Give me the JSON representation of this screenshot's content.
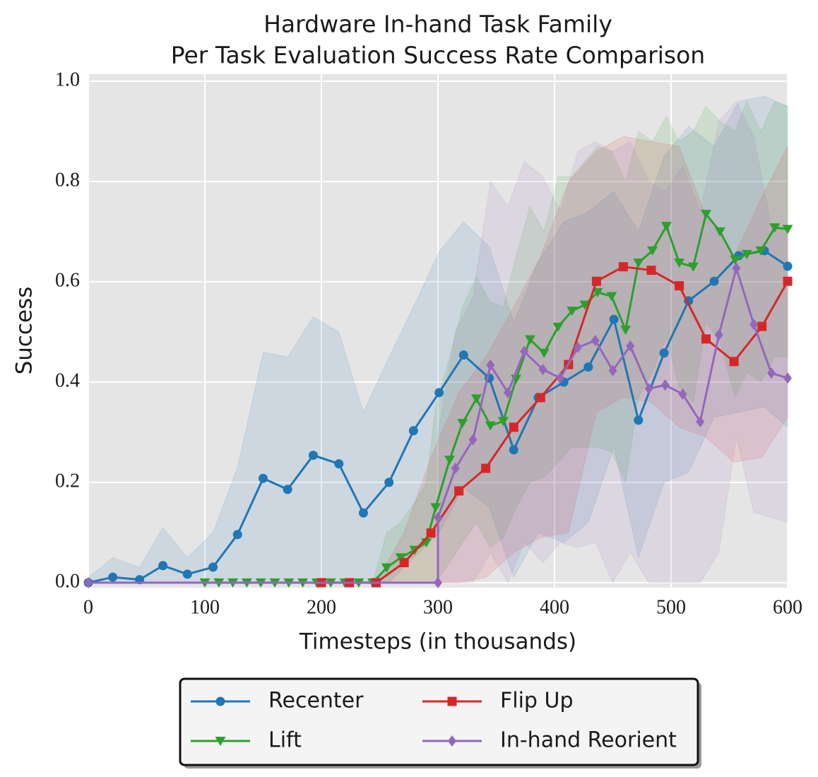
{
  "chart_data": {
    "type": "line",
    "title": [
      "Hardware In-hand Task Family",
      "Per Task Evaluation Success Rate Comparison"
    ],
    "x_label": "Timesteps (in thousands)",
    "y_label": "Success",
    "xlim": [
      0,
      600
    ],
    "ylim": [
      -0.01,
      1.014
    ],
    "xticks": [
      0,
      100,
      200,
      300,
      400,
      500,
      600
    ],
    "yticks": [
      {
        "value": 0,
        "label": "0.0"
      },
      0.2,
      0.4,
      0.6,
      0.8,
      {
        "value": 1,
        "label": "1.0"
      }
    ],
    "grid": true,
    "legend": "below",
    "band_opacity": 0.12,
    "series": [
      {
        "name": "Recenter",
        "color": "#1f77b4",
        "marker": "circle",
        "x": [
          0,
          21,
          44,
          64,
          85,
          107,
          128,
          150,
          171,
          193,
          215,
          236,
          258,
          279,
          301,
          322,
          344,
          365,
          386,
          408,
          429,
          451,
          472,
          494,
          515,
          537,
          558,
          580,
          600
        ],
        "values": [
          0,
          0.011,
          0.006,
          0.034,
          0.017,
          0.031,
          0.096,
          0.208,
          0.186,
          0.254,
          0.237,
          0.139,
          0.2,
          0.303,
          0.379,
          0.454,
          0.408,
          0.265,
          0.369,
          0.4,
          0.43,
          0.525,
          0.324,
          0.458,
          0.562,
          0.601,
          0.652,
          0.662,
          0.631
        ],
        "upper": [
          0.01,
          0.05,
          0.03,
          0.11,
          0.05,
          0.1,
          0.23,
          0.46,
          0.45,
          0.53,
          0.5,
          0.34,
          0.45,
          0.55,
          0.66,
          0.72,
          0.67,
          0.52,
          0.64,
          0.72,
          0.74,
          0.78,
          0.7,
          0.85,
          0.91,
          0.87,
          0.96,
          0.97,
          0.95
        ],
        "lower": [
          0,
          0,
          0,
          0,
          0,
          0,
          0,
          0,
          0,
          0,
          0,
          0,
          0,
          0.05,
          0.1,
          0.19,
          0.15,
          0.01,
          0.1,
          0.08,
          0.12,
          0.27,
          0.05,
          0.2,
          0.22,
          0.33,
          0.34,
          0.35,
          0.31
        ]
      },
      {
        "name": "Lift",
        "color": "#2ca02c",
        "marker": "triangle-down",
        "x": [
          100,
          112,
          124,
          136,
          148,
          160,
          172,
          184,
          196,
          208,
          220,
          232,
          244,
          256,
          268,
          280,
          290,
          298,
          310,
          321,
          333,
          345,
          356,
          367,
          379,
          391,
          403,
          415,
          426,
          437,
          449,
          461,
          472,
          484,
          496,
          507,
          519,
          530,
          542,
          555,
          565,
          577,
          589,
          600
        ],
        "values": [
          0,
          0,
          0,
          0,
          0,
          0,
          0,
          0,
          0,
          0,
          0,
          0,
          0,
          0.03,
          0.05,
          0.065,
          0.08,
          0.15,
          0.245,
          0.318,
          0.367,
          0.313,
          0.322,
          0.406,
          0.485,
          0.458,
          0.51,
          0.542,
          0.554,
          0.579,
          0.571,
          0.504,
          0.638,
          0.662,
          0.711,
          0.638,
          0.63,
          0.735,
          0.7,
          0.644,
          0.655,
          0.662,
          0.708,
          0.705
        ],
        "upper": [
          0,
          0,
          0,
          0,
          0,
          0,
          0,
          0,
          0,
          0,
          0,
          0,
          0,
          0.1,
          0.12,
          0.16,
          0.2,
          0.35,
          0.45,
          0.55,
          0.61,
          0.56,
          0.55,
          0.65,
          0.75,
          0.7,
          0.81,
          0.81,
          0.84,
          0.87,
          0.86,
          0.8,
          0.9,
          0.88,
          0.93,
          0.88,
          0.9,
          0.95,
          0.92,
          0.9,
          0.96,
          0.9,
          0.96,
          0.95
        ],
        "lower": [
          0,
          0,
          0,
          0,
          0,
          0,
          0,
          0,
          0,
          0,
          0,
          0,
          0,
          0,
          0,
          0,
          0,
          0,
          0.04,
          0.08,
          0.12,
          0.07,
          0.09,
          0.15,
          0.2,
          0.21,
          0.24,
          0.27,
          0.27,
          0.27,
          0.26,
          0.2,
          0.37,
          0.42,
          0.49,
          0.39,
          0.36,
          0.52,
          0.48,
          0.37,
          0.42,
          0.4,
          0.45,
          0.45
        ]
      },
      {
        "name": "Flip Up",
        "color": "#d62728",
        "marker": "square",
        "x": [
          200,
          224,
          247,
          271,
          294,
          318,
          341,
          365,
          388,
          412,
          436,
          459,
          483,
          507,
          530,
          554,
          578,
          600
        ],
        "values": [
          0,
          0,
          0,
          0.04,
          0.099,
          0.183,
          0.228,
          0.31,
          0.369,
          0.435,
          0.601,
          0.63,
          0.623,
          0.592,
          0.486,
          0.441,
          0.511,
          0.601
        ],
        "upper": [
          0,
          0,
          0,
          0.1,
          0.25,
          0.38,
          0.45,
          0.55,
          0.65,
          0.8,
          0.86,
          0.89,
          0.88,
          0.87,
          0.73,
          0.65,
          0.77,
          0.87
        ],
        "lower": [
          0,
          0,
          0,
          0,
          0,
          0,
          0.01,
          0.06,
          0.09,
          0.1,
          0.34,
          0.37,
          0.36,
          0.31,
          0.29,
          0.24,
          0.25,
          0.33
        ]
      },
      {
        "name": "In-hand Reorient",
        "color": "#9467bd",
        "marker": "diamond",
        "x": [
          0,
          300,
          300,
          315,
          330,
          345,
          360,
          374,
          390,
          405,
          420,
          435,
          450,
          465,
          481,
          495,
          510,
          525,
          541,
          556,
          571,
          586,
          600
        ],
        "values": [
          0,
          0,
          0.13,
          0.228,
          0.285,
          0.434,
          0.379,
          0.461,
          0.425,
          0.408,
          0.469,
          0.483,
          0.423,
          0.472,
          0.387,
          0.394,
          0.376,
          0.321,
          0.494,
          0.627,
          0.515,
          0.418,
          0.408
        ],
        "upper": [
          0,
          0,
          0.3,
          0.5,
          0.57,
          0.8,
          0.75,
          0.84,
          0.81,
          0.74,
          0.86,
          0.88,
          0.86,
          0.88,
          0.8,
          0.78,
          0.83,
          0.74,
          0.92,
          0.96,
          0.89,
          0.71,
          0.7
        ],
        "lower": [
          0,
          0,
          0,
          0,
          0,
          0.06,
          0,
          0.08,
          0.04,
          0.08,
          0.07,
          0.08,
          0,
          0.06,
          0,
          0,
          0,
          0,
          0.06,
          0.29,
          0.14,
          0.13,
          0.12
        ]
      }
    ]
  }
}
